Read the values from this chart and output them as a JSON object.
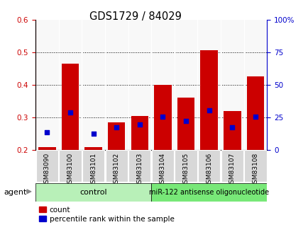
{
  "title": "GDS1729 / 84029",
  "categories": [
    "GSM83090",
    "GSM83100",
    "GSM83101",
    "GSM83102",
    "GSM83103",
    "GSM83104",
    "GSM83105",
    "GSM83106",
    "GSM83107",
    "GSM83108"
  ],
  "red_values": [
    0.21,
    0.465,
    0.21,
    0.285,
    0.305,
    0.4,
    0.36,
    0.505,
    0.32,
    0.425
  ],
  "blue_values": [
    0.255,
    0.315,
    0.25,
    0.27,
    0.278,
    0.302,
    0.29,
    0.322,
    0.27,
    0.302
  ],
  "ylim_left": [
    0.2,
    0.6
  ],
  "ylim_right": [
    0,
    100
  ],
  "yticks_left": [
    0.2,
    0.3,
    0.4,
    0.5,
    0.6
  ],
  "yticks_right": [
    0,
    25,
    50,
    75,
    100
  ],
  "bar_bottom": 0.2,
  "bar_color": "#cc0000",
  "dot_color": "#0000cc",
  "control_label": "control",
  "treatment_label": "miR-122 antisense oligonucleotide",
  "agent_label": "agent",
  "legend_count": "count",
  "legend_percentile": "percentile rank within the sample",
  "bar_width": 0.75,
  "ctrl_color": "#b8f0b8",
  "treat_color": "#78e878",
  "tick_bg": "#d8d8d8",
  "plot_bg": "#f8f8f8"
}
